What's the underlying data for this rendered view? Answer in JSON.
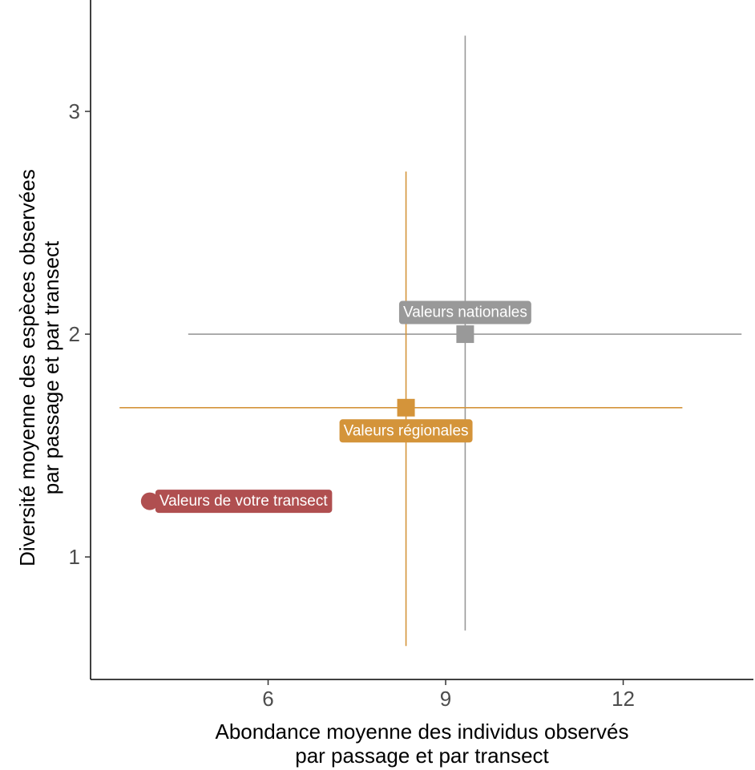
{
  "chart_data": {
    "type": "scatter",
    "title": "",
    "xlabel": [
      "Abondance moyenne des individus observés",
      "par passage et par transect"
    ],
    "ylabel": [
      "Diversité moyenne des espèces observées",
      "par passage et par transect"
    ],
    "xlim": [
      3.0,
      14.2
    ],
    "ylim": [
      0.45,
      3.5
    ],
    "xticks": [
      6,
      9,
      12
    ],
    "yticks": [
      1,
      2,
      3
    ],
    "grid": false,
    "legend": "none",
    "points": [
      {
        "label": "Valeurs nationales",
        "x": 9.33,
        "y": 2.0,
        "x_range": [
          4.65,
          14.0
        ],
        "y_range": [
          0.67,
          3.34
        ],
        "color": "#999999",
        "marker": "square"
      },
      {
        "label": "Valeurs régionales",
        "x": 8.33,
        "y": 1.67,
        "x_range": [
          3.49,
          13.0
        ],
        "y_range": [
          0.6,
          2.73
        ],
        "color": "#D4943A",
        "marker": "square"
      },
      {
        "label": "Valeurs de votre transect",
        "x": 4.0,
        "y": 1.25,
        "color": "#B04F50",
        "marker": "circle"
      }
    ]
  }
}
